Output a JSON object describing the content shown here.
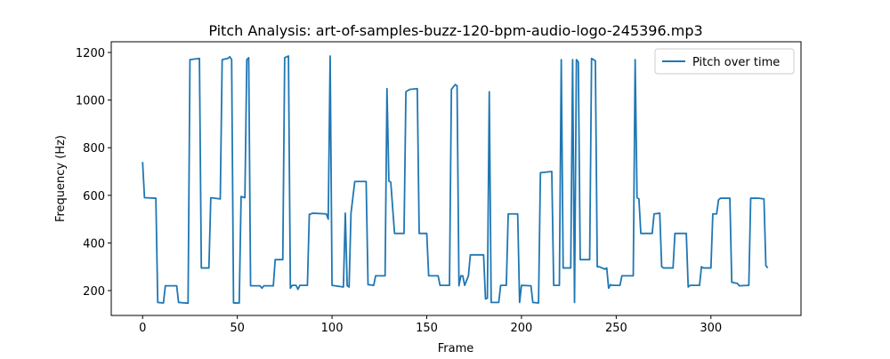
{
  "chart_data": {
    "type": "line",
    "title": "Pitch Analysis: art-of-samples-buzz-120-bpm-audio-logo-245396.mp3",
    "x_label": "Frame",
    "y_label": "Frequency (Hz)",
    "x": [
      0,
      1,
      7,
      8,
      11,
      12,
      18,
      19,
      24,
      25,
      30,
      31,
      35,
      36,
      41,
      42,
      45,
      46,
      47,
      48,
      51,
      52,
      54,
      55,
      56,
      57,
      62,
      63,
      64,
      69,
      70,
      74,
      75,
      77,
      78,
      79,
      81,
      82,
      83,
      87,
      88,
      90,
      97,
      98,
      99,
      100,
      106,
      107,
      108,
      109,
      110,
      112,
      118,
      119,
      122,
      123,
      128,
      129,
      130,
      131,
      133,
      138,
      139,
      141,
      145,
      146,
      150,
      151,
      156,
      157,
      162,
      163,
      165,
      166,
      167,
      168,
      169,
      170,
      172,
      173,
      180,
      181,
      182,
      183,
      184,
      188,
      189,
      192,
      193,
      198,
      199,
      200,
      205,
      206,
      209,
      210,
      216,
      217,
      220,
      221,
      222,
      226,
      227,
      228,
      229,
      230,
      231,
      236,
      237,
      239,
      240,
      241,
      244,
      245,
      246,
      247,
      248,
      252,
      253,
      259,
      260,
      261,
      262,
      263,
      269,
      270,
      273,
      274,
      275,
      280,
      281,
      287,
      288,
      289,
      294,
      295,
      296,
      300,
      301,
      303,
      304,
      305,
      310,
      311,
      314,
      315,
      320,
      321,
      325,
      328,
      329,
      330
    ],
    "series": [
      {
        "name": "Pitch over time",
        "color": "#1f77b4",
        "values": [
          740,
          590,
          588,
          150,
          148,
          220,
          220,
          150,
          147,
          1170,
          1175,
          295,
          295,
          590,
          585,
          1170,
          1175,
          1182,
          1170,
          148,
          148,
          595,
          590,
          1170,
          1178,
          220,
          220,
          210,
          220,
          220,
          330,
          330,
          1178,
          1185,
          210,
          222,
          222,
          205,
          222,
          222,
          520,
          525,
          522,
          500,
          1185,
          222,
          215,
          525,
          220,
          215,
          525,
          658,
          658,
          225,
          222,
          262,
          262,
          1048,
          660,
          655,
          440,
          440,
          1035,
          1045,
          1048,
          440,
          440,
          262,
          262,
          222,
          222,
          1045,
          1065,
          1060,
          220,
          262,
          262,
          222,
          262,
          350,
          350,
          165,
          168,
          1035,
          150,
          150,
          222,
          222,
          522,
          522,
          150,
          222,
          220,
          150,
          148,
          695,
          700,
          222,
          222,
          1170,
          295,
          295,
          1170,
          150,
          1170,
          1160,
          330,
          330,
          1175,
          1165,
          300,
          300,
          290,
          295,
          210,
          225,
          222,
          222,
          262,
          262,
          1170,
          590,
          585,
          440,
          440,
          522,
          525,
          300,
          295,
          295,
          440,
          440,
          215,
          222,
          222,
          300,
          295,
          295,
          522,
          522,
          580,
          588,
          588,
          235,
          230,
          220,
          222,
          588,
          588,
          585,
          305,
          295
        ]
      }
    ],
    "xlim": [
      -16.55,
      347.55
    ],
    "ylim": [
      95.5,
      1245
    ],
    "xticks": [
      0,
      50,
      100,
      150,
      200,
      250,
      300
    ],
    "yticks": [
      200,
      400,
      600,
      800,
      1000,
      1200
    ],
    "legend": "upper right"
  }
}
